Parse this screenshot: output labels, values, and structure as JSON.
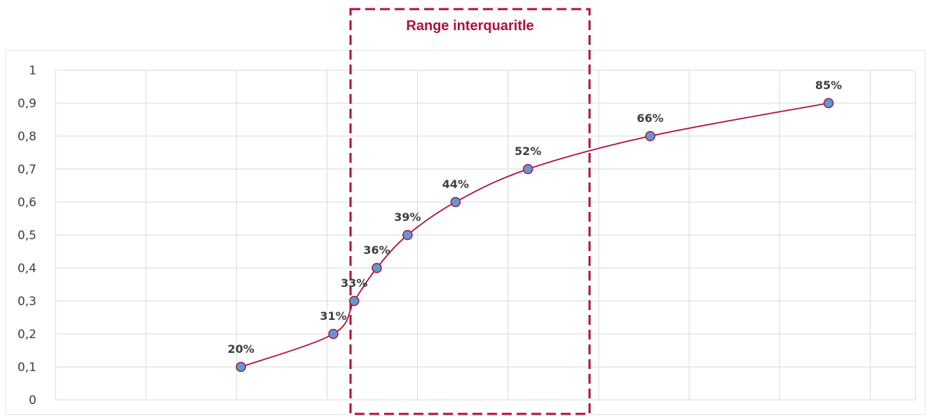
{
  "chart_data": {
    "type": "line",
    "title": "",
    "xlabel": "",
    "ylabel": "",
    "smooth": true,
    "markers": true,
    "grid": true,
    "legend": "none",
    "x_range": [
      0,
      9.5
    ],
    "ylim": [
      0,
      1
    ],
    "y_ticks": [
      "0",
      "0,1",
      "0,2",
      "0,3",
      "0,4",
      "0,5",
      "0,6",
      "0,7",
      "0,8",
      "0,9",
      "1"
    ],
    "series": [
      {
        "x": [
          2.05,
          3.07,
          3.3,
          3.55,
          3.89,
          4.42,
          5.22,
          6.57,
          8.54
        ],
        "values": [
          0.1,
          0.2,
          0.3,
          0.4,
          0.5,
          0.6,
          0.7,
          0.8,
          0.9
        ],
        "data_labels": [
          "20%",
          "31%",
          "33%",
          "36%",
          "39%",
          "44%",
          "52%",
          "66%",
          "85%"
        ]
      }
    ],
    "annotation": {
      "label": "Range interquaritle",
      "x_from": 3.26,
      "x_to": 5.9
    },
    "colors": {
      "line": "#b0103c",
      "marker_fill": "#5b9bd5",
      "marker_stroke": "#b0103c",
      "grid": "#d9d9d9",
      "annotation": "#b0103c",
      "tick_text": "#404040"
    }
  }
}
